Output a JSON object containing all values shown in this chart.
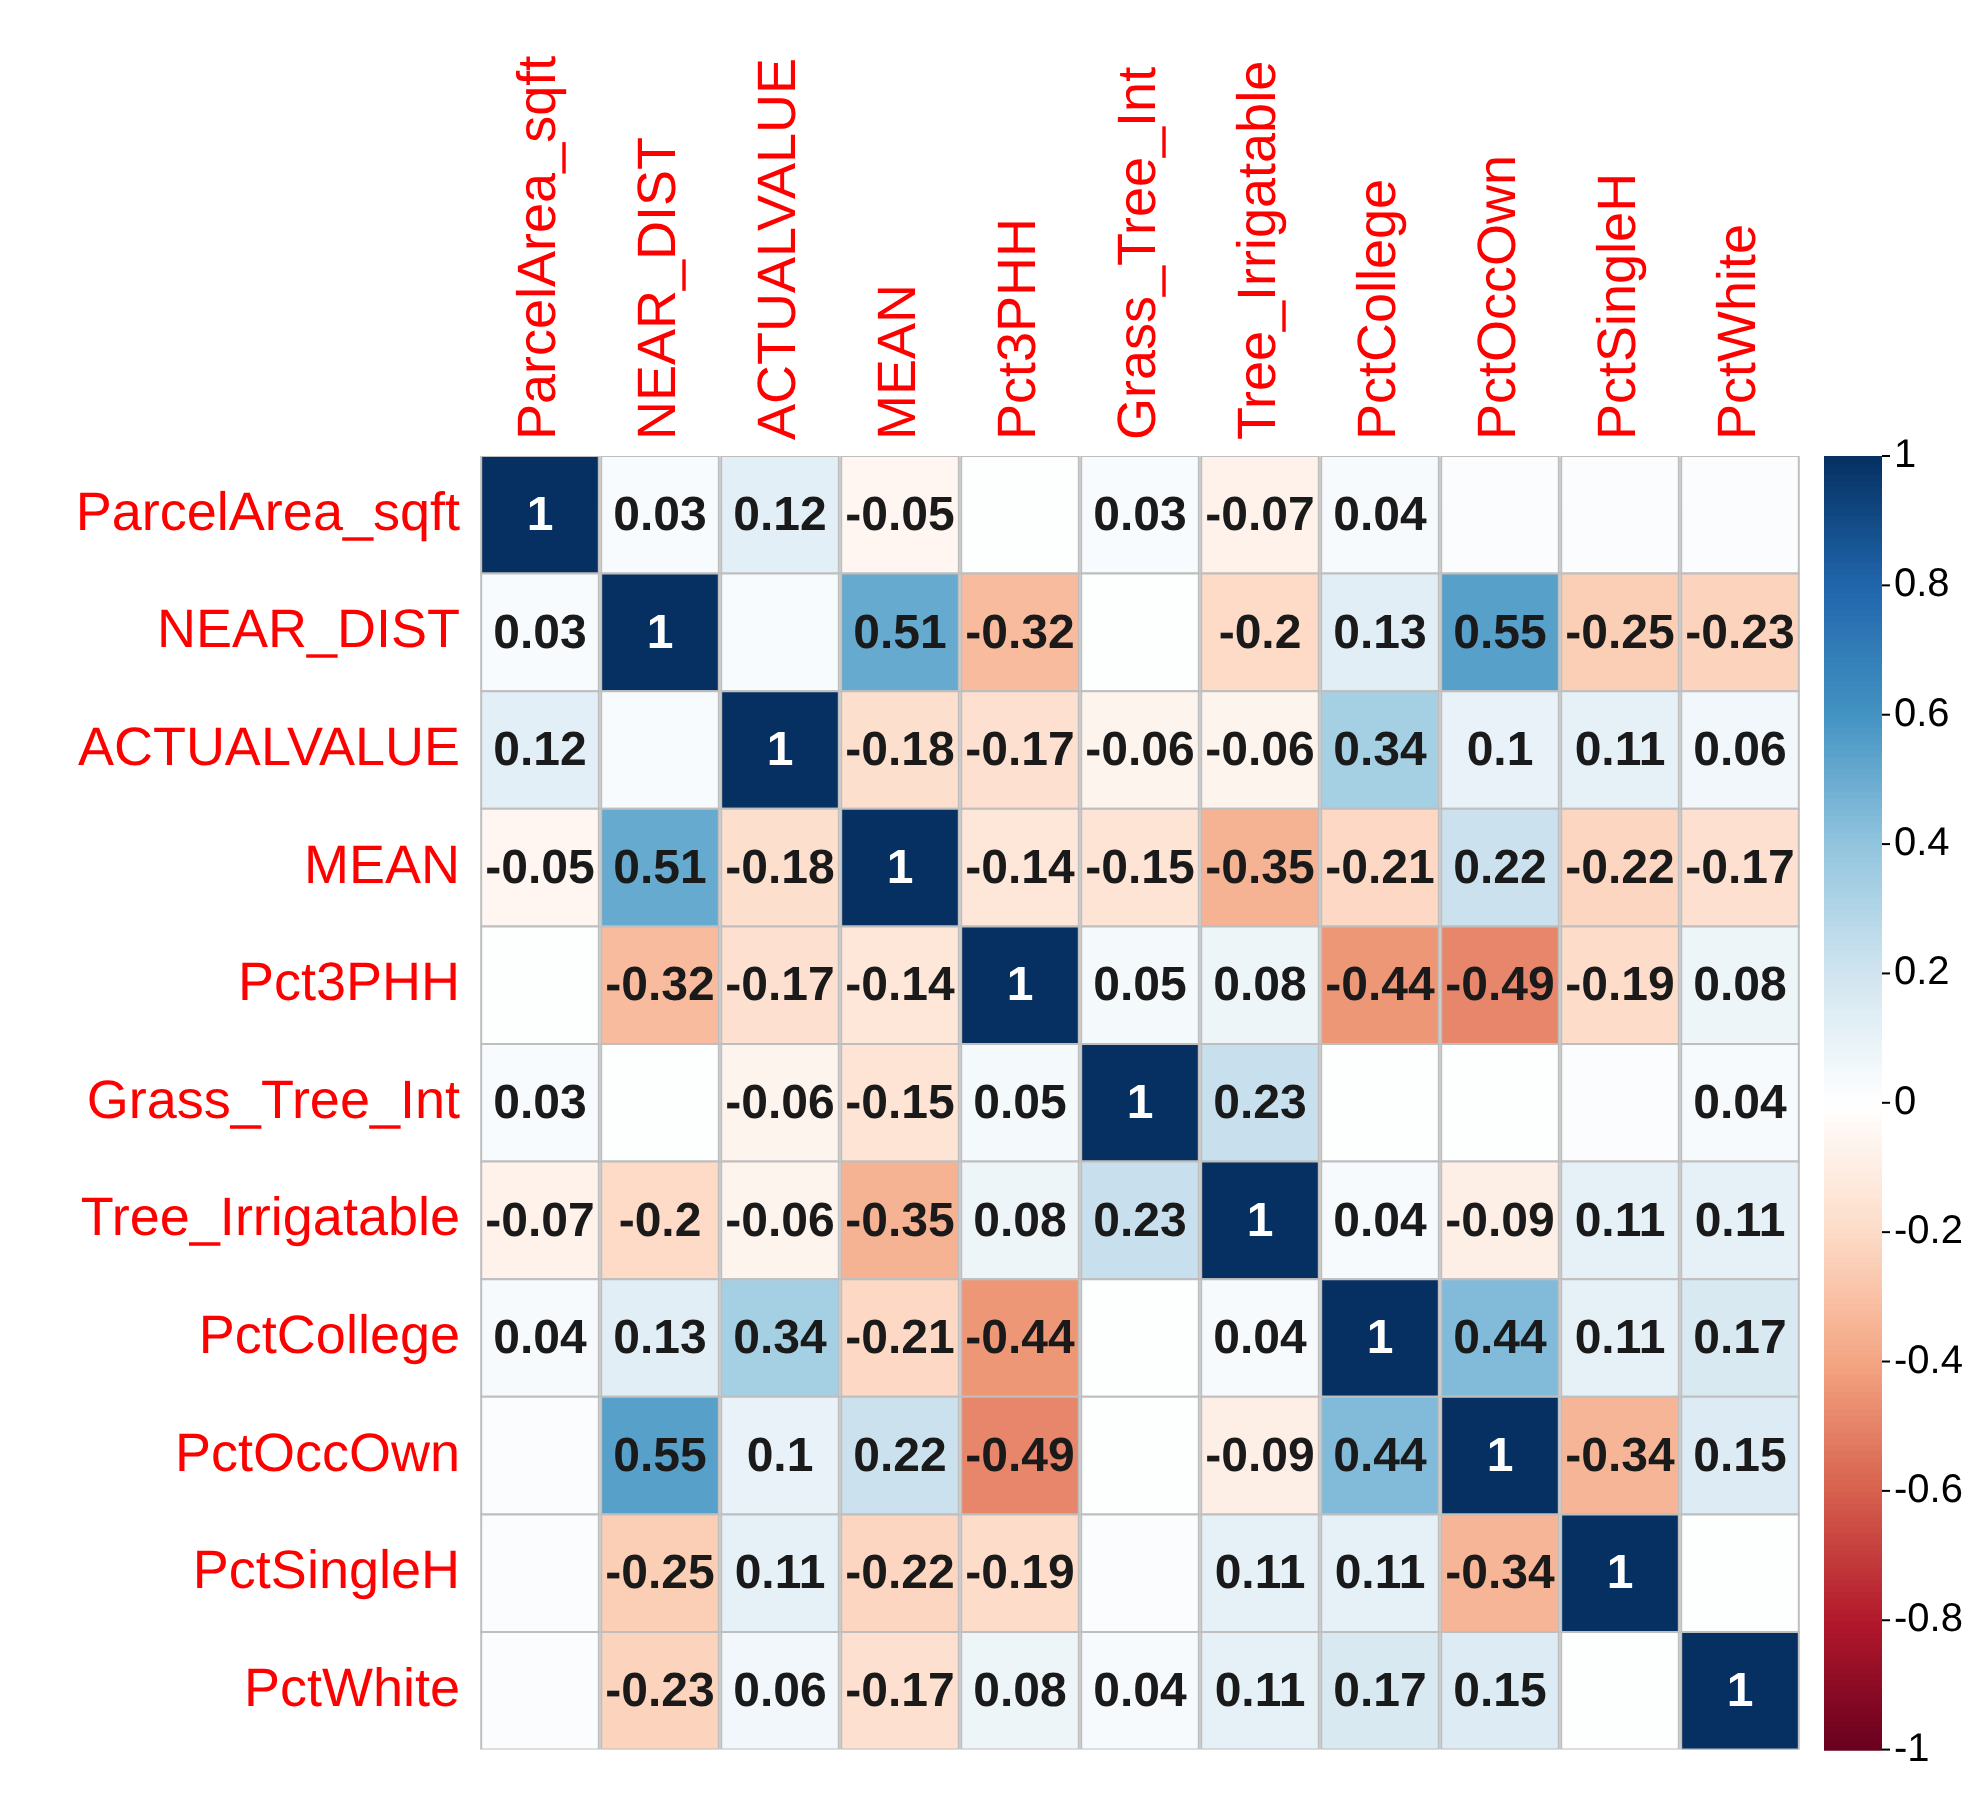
{
  "chart_data": {
    "type": "heatmap",
    "categories": [
      "ParcelArea_sqft",
      "NEAR_DIST",
      "ACTUALVALUE",
      "MEAN",
      "Pct3PHH",
      "Grass_Tree_Int",
      "Tree_Irrigatable",
      "PctCollege",
      "PctOccOwn",
      "PctSingleH",
      "PctWhite"
    ],
    "y_categories": [
      "ParcelArea_sqft",
      "NEAR_DIST",
      "ACTUALVALUE",
      "MEAN",
      "Pct3PHH",
      "Grass_Tree_Int",
      "Tree_Irrigatable",
      "PctCollege",
      "PctOccOwn",
      "PctSingleH",
      "PctWhite"
    ],
    "cells": [
      [
        1,
        0.03,
        0.12,
        -0.05,
        0.01,
        0.03,
        -0.07,
        0.04,
        0.02,
        0.02,
        0.02
      ],
      [
        0.03,
        1,
        0.03,
        0.51,
        -0.32,
        0.01,
        -0.2,
        0.13,
        0.55,
        -0.25,
        -0.23
      ],
      [
        0.12,
        0.03,
        1,
        -0.18,
        -0.17,
        -0.06,
        -0.06,
        0.34,
        0.1,
        0.11,
        0.06
      ],
      [
        -0.05,
        0.51,
        -0.18,
        1,
        -0.14,
        -0.15,
        -0.35,
        -0.21,
        0.22,
        -0.22,
        -0.17
      ],
      [
        0.01,
        -0.32,
        -0.17,
        -0.14,
        1,
        0.05,
        0.08,
        -0.44,
        -0.49,
        -0.19,
        0.08
      ],
      [
        0.03,
        0.01,
        -0.06,
        -0.15,
        0.05,
        1,
        0.23,
        0.01,
        0.01,
        0.02,
        0.04
      ],
      [
        -0.07,
        -0.2,
        -0.06,
        -0.35,
        0.08,
        0.23,
        1,
        0.04,
        -0.09,
        0.11,
        0.11
      ],
      [
        0.04,
        0.13,
        0.34,
        -0.21,
        -0.44,
        0.01,
        0.04,
        1,
        0.44,
        0.11,
        0.17
      ],
      [
        0.02,
        0.55,
        0.1,
        0.22,
        -0.49,
        0.01,
        -0.09,
        0.44,
        1,
        -0.34,
        0.15
      ],
      [
        0.02,
        -0.25,
        0.11,
        -0.22,
        -0.19,
        0.02,
        0.11,
        0.11,
        -0.34,
        1,
        0.01
      ],
      [
        0.02,
        -0.23,
        0.06,
        -0.17,
        0.08,
        0.04,
        0.11,
        0.17,
        0.15,
        0.01,
        1
      ]
    ],
    "cell_labels": [
      [
        "1",
        "0.03",
        "0.12",
        "-0.05",
        null,
        "0.03",
        "-0.07",
        "0.04",
        null,
        null,
        null
      ],
      [
        "0.03",
        "1",
        null,
        "0.51",
        "-0.32",
        null,
        "-0.2",
        "0.13",
        "0.55",
        "-0.25",
        "-0.23"
      ],
      [
        "0.12",
        null,
        "1",
        "-0.18",
        "-0.17",
        "-0.06",
        "-0.06",
        "0.34",
        "0.1",
        "0.11",
        "0.06"
      ],
      [
        "-0.05",
        "0.51",
        "-0.18",
        "1",
        "-0.14",
        "-0.15",
        "-0.35",
        "-0.21",
        "0.22",
        "-0.22",
        "-0.17"
      ],
      [
        null,
        "-0.32",
        "-0.17",
        "-0.14",
        "1",
        "0.05",
        "0.08",
        "-0.44",
        "-0.49",
        "-0.19",
        "0.08"
      ],
      [
        "0.03",
        null,
        "-0.06",
        "-0.15",
        "0.05",
        "1",
        "0.23",
        null,
        null,
        null,
        "0.04"
      ],
      [
        "-0.07",
        "-0.2",
        "-0.06",
        "-0.35",
        "0.08",
        "0.23",
        "1",
        "0.04",
        "-0.09",
        "0.11",
        "0.11"
      ],
      [
        "0.04",
        "0.13",
        "0.34",
        "-0.21",
        "-0.44",
        null,
        "0.04",
        "1",
        "0.44",
        "0.11",
        "0.17"
      ],
      [
        null,
        "0.55",
        "0.1",
        "0.22",
        "-0.49",
        null,
        "-0.09",
        "0.44",
        "1",
        "-0.34",
        "0.15"
      ],
      [
        null,
        "-0.25",
        "0.11",
        "-0.22",
        "-0.19",
        null,
        "0.11",
        "0.11",
        "-0.34",
        "1",
        null
      ],
      [
        null,
        "-0.23",
        "0.06",
        "-0.17",
        "0.08",
        "0.04",
        "0.11",
        "0.17",
        "0.15",
        null,
        "1"
      ]
    ],
    "clim": [
      -1,
      1
    ],
    "cticks": [
      -1,
      -0.8,
      -0.6,
      -0.4,
      -0.2,
      0,
      0.2,
      0.4,
      0.6,
      0.8,
      1
    ]
  }
}
